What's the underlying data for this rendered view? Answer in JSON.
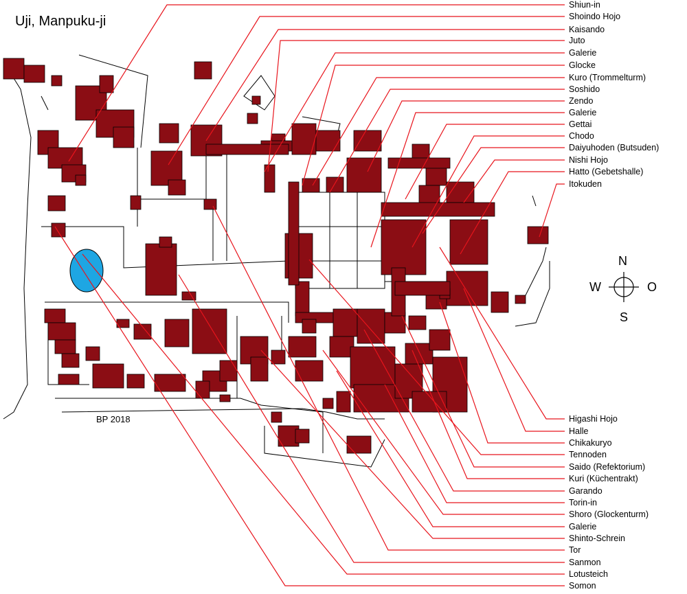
{
  "title": "Uji, Manpuku-ji",
  "credit": "BP 2018",
  "compass": {
    "north": "N",
    "west": "W",
    "east": "O",
    "south": "S"
  },
  "colors": {
    "building": "#8b0d14",
    "leader": "#e8141c",
    "pond": "#1ea6e3",
    "road": "#000000"
  },
  "labels_top": [
    "Shiun-in",
    "Shoindo Hojo",
    "Kaisando",
    "Juto",
    "Galerie",
    "Glocke",
    "Kuro (Trommelturm)",
    "Soshido",
    "Zendo",
    "Galerie",
    "Gettai",
    "Chodo",
    "Daiyuhoden (Butsuden)",
    "Nishi Hojo",
    "Hatto (Gebetshalle)",
    "Itokuden"
  ],
  "labels_bottom": [
    "Higashi Hojo",
    "Halle",
    "Chikakuryo",
    "Tennoden",
    "Saido (Refektorium)",
    "Kuri (Küchentrakt)",
    "Garando",
    "Torin-in",
    "Shoro (Glockenturm)",
    "Galerie",
    "Shinto-Schrein",
    "Tor",
    "Sanmon",
    "Lotusteich",
    "Somon"
  ]
}
